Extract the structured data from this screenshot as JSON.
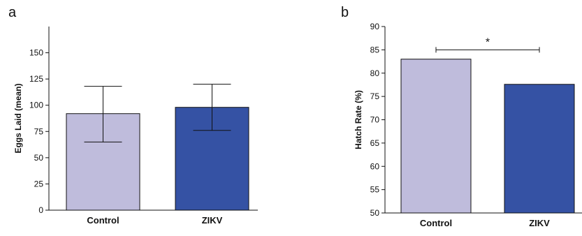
{
  "panels": {
    "a": {
      "letter": "a"
    },
    "b": {
      "letter": "b"
    }
  },
  "chart_data": [
    {
      "type": "bar",
      "categories": [
        "Control",
        "ZIKV"
      ],
      "values": [
        92,
        98
      ],
      "error_low": [
        65,
        76
      ],
      "error_high": [
        118,
        120
      ],
      "colors": [
        "#bfbcdc",
        "#3552a4"
      ],
      "xlabel": "",
      "ylabel": "Eggs Laid (mean)",
      "ylim": [
        0,
        175
      ],
      "yticks": [
        0,
        25,
        50,
        75,
        100,
        125,
        150
      ],
      "ytick_labels": [
        "0",
        "25",
        "50",
        "75",
        "100",
        "125",
        "150"
      ],
      "grid": false
    },
    {
      "type": "bar",
      "categories": [
        "Control",
        "ZIKV"
      ],
      "values": [
        83,
        77.6
      ],
      "colors": [
        "#bfbcdc",
        "#3552a4"
      ],
      "xlabel": "",
      "ylabel": "Hatch Rate (%)",
      "ylim": [
        50,
        90
      ],
      "yticks": [
        50,
        55,
        60,
        65,
        70,
        75,
        80,
        85,
        90
      ],
      "ytick_labels": [
        "50",
        "55",
        "60",
        "65",
        "70",
        "75",
        "80",
        "85",
        "90"
      ],
      "grid": false,
      "significance": {
        "from": "Control",
        "to": "ZIKV",
        "y": 85,
        "label": "*"
      }
    }
  ]
}
